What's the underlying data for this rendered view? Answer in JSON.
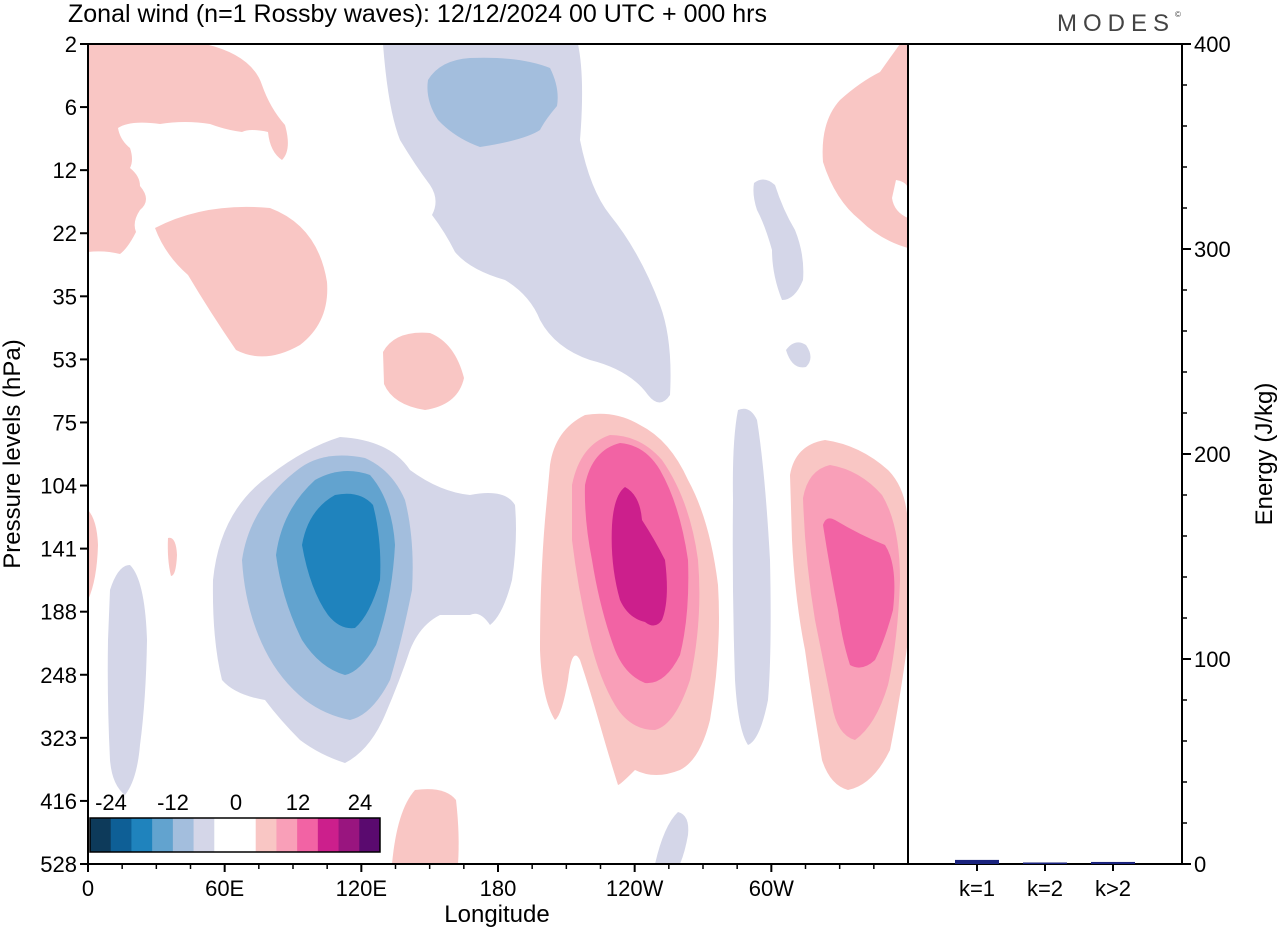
{
  "title": "Zonal wind (n=1 Rossby waves):  12/12/2024  00 UTC  + 000 hrs",
  "brand": "MODES",
  "brand_mark": "©",
  "chart_data": [
    {
      "type": "heatmap",
      "title": "Zonal wind (n=1 Rossby waves):  12/12/2024  00 UTC  + 000 hrs",
      "xlabel": "Longitude",
      "ylabel": "Pressure levels (hPa)",
      "x_ticks": [
        "0",
        "60E",
        "120E",
        "180",
        "120W",
        "60W"
      ],
      "x_tick_degrees": [
        0,
        60,
        120,
        180,
        240,
        300
      ],
      "xlim": [
        0,
        360
      ],
      "y_ticks": [
        "2",
        "6",
        "12",
        "22",
        "35",
        "53",
        "75",
        "104",
        "141",
        "188",
        "248",
        "323",
        "416",
        "528"
      ],
      "colorbar": {
        "labels": [
          "-24",
          "-12",
          "0",
          "12",
          "24"
        ],
        "colors": [
          "#0d3a5a",
          "#0e5f96",
          "#1f83bd",
          "#62a3cf",
          "#a3bedd",
          "#d4d6e8",
          "#ffffff",
          "#ffffff",
          "#f9c6c4",
          "#f99fb8",
          "#f263a4",
          "#cc1f8c",
          "#99157f",
          "#5a0a6f"
        ]
      },
      "features": [
        {
          "sign": "negative",
          "peak": -18,
          "lon": 105,
          "level": "141"
        },
        {
          "sign": "negative",
          "peak": -6,
          "lon": 150,
          "level": "6"
        },
        {
          "sign": "positive",
          "peak": 15,
          "lon": 243,
          "level": "141"
        },
        {
          "sign": "positive",
          "peak": 12,
          "lon": 345,
          "level": "141"
        },
        {
          "sign": "positive",
          "peak": 3,
          "lon": 75,
          "level": "35"
        },
        {
          "sign": "positive",
          "peak": 3,
          "lon": 345,
          "level": "12"
        }
      ]
    },
    {
      "type": "bar",
      "ylabel": "Energy (J/kg)",
      "categories": [
        "k=1",
        "k=2",
        "k>2"
      ],
      "values": [
        2,
        0.5,
        1
      ],
      "ylim": [
        0,
        400
      ],
      "y_ticks": [
        "0",
        "100",
        "200",
        "300",
        "400"
      ],
      "bar_color": "#1a237e"
    }
  ]
}
